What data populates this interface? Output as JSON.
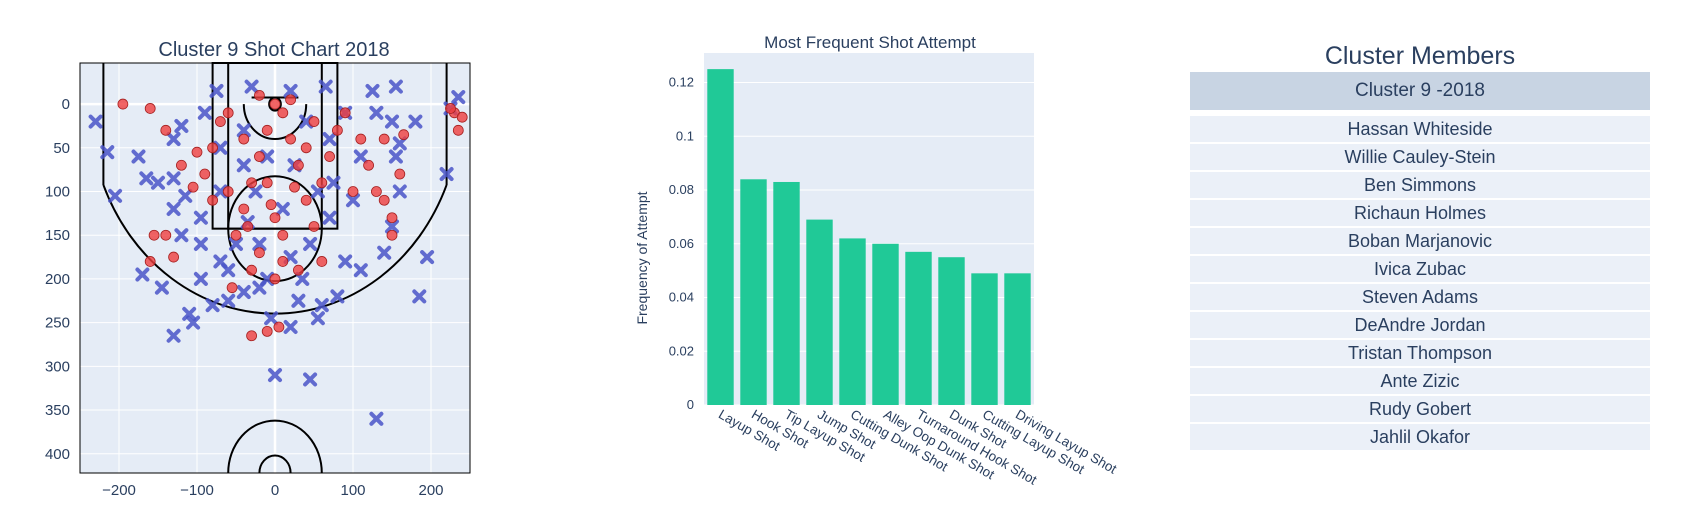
{
  "shot_chart": {
    "title": "Cluster 9 Shot Chart 2018",
    "colors": {
      "made": "#ef3e3e",
      "missed": "#4a55c8",
      "court_line": "#000000",
      "grid": "#ffffff",
      "bg": "#e5ecf6"
    }
  },
  "bar_chart": {
    "colors": {
      "bar": "#20c997",
      "bg": "#e5ecf6",
      "grid": "#ffffff"
    }
  },
  "members": {
    "title": "Cluster Members",
    "header": "Cluster 9 -2018",
    "names": [
      "Hassan Whiteside",
      "Willie Cauley-Stein",
      "Ben Simmons",
      "Richaun Holmes",
      "Boban Marjanovic",
      "Ivica Zubac",
      "Steven Adams",
      "DeAndre Jordan",
      "Tristan Thompson",
      "Ante Zizic",
      "Rudy Gobert",
      "Jahlil Okafor"
    ]
  },
  "chart_data": [
    {
      "type": "scatter",
      "title": "Cluster 9 Shot Chart 2018",
      "xlim": [
        -250,
        250
      ],
      "ylim": [
        422,
        -47
      ],
      "y_reversed": true,
      "x_ticks": [
        -200,
        -100,
        0,
        100,
        200
      ],
      "y_ticks": [
        0,
        50,
        100,
        150,
        200,
        250,
        300,
        350,
        400
      ],
      "grid": true,
      "series": [
        {
          "marker": "x",
          "color": "#4a55c8",
          "points": [
            [
              -230,
              20
            ],
            [
              -215,
              55
            ],
            [
              -205,
              105
            ],
            [
              -175,
              60
            ],
            [
              -165,
              85
            ],
            [
              -150,
              90
            ],
            [
              -130,
              85
            ],
            [
              -130,
              40
            ],
            [
              -120,
              25
            ],
            [
              -170,
              195
            ],
            [
              -145,
              210
            ],
            [
              -130,
              265
            ],
            [
              -110,
              240
            ],
            [
              -105,
              250
            ],
            [
              -95,
              200
            ],
            [
              -80,
              230
            ],
            [
              -70,
              180
            ],
            [
              -95,
              160
            ],
            [
              -120,
              150
            ],
            [
              -130,
              120
            ],
            [
              -115,
              105
            ],
            [
              -60,
              225
            ],
            [
              -40,
              215
            ],
            [
              -20,
              210
            ],
            [
              -5,
              245
            ],
            [
              20,
              255
            ],
            [
              30,
              225
            ],
            [
              60,
              230
            ],
            [
              55,
              245
            ],
            [
              80,
              220
            ],
            [
              110,
              190
            ],
            [
              140,
              170
            ],
            [
              150,
              140
            ],
            [
              160,
              100
            ],
            [
              155,
              60
            ],
            [
              160,
              45
            ],
            [
              150,
              20
            ],
            [
              130,
              10
            ],
            [
              125,
              -15
            ],
            [
              155,
              -20
            ],
            [
              180,
              20
            ],
            [
              220,
              80
            ],
            [
              225,
              5
            ],
            [
              235,
              -8
            ],
            [
              195,
              175
            ],
            [
              185,
              220
            ],
            [
              0,
              310
            ],
            [
              45,
              315
            ],
            [
              130,
              360
            ],
            [
              -10,
              200
            ],
            [
              -35,
              135
            ],
            [
              -25,
              100
            ],
            [
              -50,
              160
            ],
            [
              20,
              175
            ],
            [
              45,
              160
            ],
            [
              70,
              130
            ],
            [
              75,
              90
            ],
            [
              70,
              40
            ],
            [
              40,
              20
            ],
            [
              -40,
              30
            ],
            [
              -70,
              50
            ],
            [
              -90,
              10
            ],
            [
              -75,
              -15
            ],
            [
              -30,
              -20
            ],
            [
              20,
              -15
            ],
            [
              65,
              -20
            ],
            [
              90,
              10
            ],
            [
              110,
              60
            ],
            [
              100,
              110
            ],
            [
              -95,
              130
            ],
            [
              -70,
              100
            ],
            [
              -40,
              70
            ],
            [
              -10,
              60
            ],
            [
              25,
              70
            ],
            [
              55,
              100
            ],
            [
              10,
              120
            ],
            [
              -20,
              160
            ],
            [
              35,
              200
            ],
            [
              -60,
              190
            ],
            [
              90,
              180
            ]
          ]
        },
        {
          "marker": "circle",
          "color": "#ef3e3e",
          "points": [
            [
              -195,
              0
            ],
            [
              -160,
              5
            ],
            [
              -140,
              30
            ],
            [
              -120,
              70
            ],
            [
              -140,
              150
            ],
            [
              -155,
              150
            ],
            [
              -105,
              95
            ],
            [
              -130,
              175
            ],
            [
              -160,
              180
            ],
            [
              -30,
              265
            ],
            [
              -10,
              260
            ],
            [
              5,
              255
            ],
            [
              -100,
              55
            ],
            [
              -90,
              80
            ],
            [
              -80,
              110
            ],
            [
              -60,
              100
            ],
            [
              -40,
              120
            ],
            [
              -30,
              90
            ],
            [
              -20,
              60
            ],
            [
              -10,
              30
            ],
            [
              0,
              0
            ],
            [
              10,
              10
            ],
            [
              20,
              40
            ],
            [
              30,
              70
            ],
            [
              40,
              110
            ],
            [
              50,
              140
            ],
            [
              60,
              90
            ],
            [
              70,
              60
            ],
            [
              80,
              30
            ],
            [
              90,
              10
            ],
            [
              -50,
              150
            ],
            [
              -20,
              170
            ],
            [
              10,
              180
            ],
            [
              0,
              200
            ],
            [
              -30,
              190
            ],
            [
              30,
              190
            ],
            [
              -70,
              20
            ],
            [
              -80,
              50
            ],
            [
              110,
              40
            ],
            [
              120,
              70
            ],
            [
              130,
              100
            ],
            [
              140,
              110
            ],
            [
              150,
              150
            ],
            [
              160,
              80
            ],
            [
              140,
              40
            ],
            [
              -60,
              10
            ],
            [
              -20,
              -10
            ],
            [
              20,
              -5
            ],
            [
              50,
              20
            ],
            [
              40,
              50
            ],
            [
              -10,
              90
            ],
            [
              0,
              130
            ],
            [
              10,
              150
            ],
            [
              -40,
              40
            ],
            [
              60,
              180
            ],
            [
              -55,
              210
            ],
            [
              230,
              10
            ],
            [
              240,
              15
            ],
            [
              235,
              30
            ],
            [
              225,
              5
            ],
            [
              165,
              35
            ],
            [
              150,
              130
            ],
            [
              100,
              100
            ],
            [
              -35,
              140
            ],
            [
              25,
              95
            ],
            [
              -5,
              115
            ]
          ]
        }
      ]
    },
    {
      "type": "bar",
      "title": "Most Frequent Shot Attempt",
      "xlabel": "",
      "ylabel": "Frequency of Attempt",
      "categories": [
        "Layup Shot",
        "Hook Shot",
        "Tip Layup Shot",
        "Jump Shot",
        "Cutting Dunk Shot",
        "Alley Oop Dunk Shot",
        "Turnaround Hook Shot",
        "Dunk Shot",
        "Cutting Layup Shot",
        "Driving Layup Shot"
      ],
      "values": [
        0.125,
        0.084,
        0.083,
        0.069,
        0.062,
        0.06,
        0.057,
        0.055,
        0.049,
        0.049
      ],
      "ylim": [
        0,
        0.131
      ],
      "y_ticks": [
        0,
        0.02,
        0.04,
        0.06,
        0.08,
        0.1,
        0.12
      ],
      "y_tick_labels": [
        "0",
        "0.02",
        "0.04",
        "0.06",
        "0.08",
        "0.1",
        "0.12"
      ],
      "grid": true
    }
  ]
}
